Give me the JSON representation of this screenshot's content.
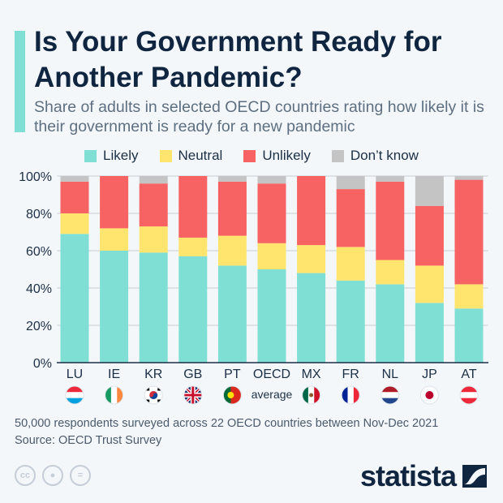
{
  "title": "Is Your Government Ready for Another Pandemic?",
  "subtitle": "Share of adults in selected OECD countries rating how likely it is their government is ready for a new pandemic",
  "footnote": "50,000 respondents surveyed across 22 OECD countries between Nov-Dec 2021",
  "source": "Source: OECD Trust Survey",
  "logo": "statista",
  "license_icons": [
    "cc-icon",
    "attribution-icon",
    "no-derivatives-icon"
  ],
  "chart_data": {
    "type": "bar",
    "stacked": true,
    "categories": [
      "LU",
      "IE",
      "KR",
      "GB",
      "PT",
      "OECD average",
      "MX",
      "FR",
      "NL",
      "JP",
      "AT"
    ],
    "category_labels": [
      [
        "LU"
      ],
      [
        "IE"
      ],
      [
        "KR"
      ],
      [
        "GB"
      ],
      [
        "PT"
      ],
      [
        "OECD",
        "average"
      ],
      [
        "MX"
      ],
      [
        "FR"
      ],
      [
        "NL"
      ],
      [
        "JP"
      ],
      [
        "AT"
      ]
    ],
    "series": [
      {
        "name": "Likely",
        "color": "#7fdfd4",
        "values": [
          69,
          60,
          59,
          57,
          52,
          50,
          48,
          44,
          42,
          32,
          29
        ]
      },
      {
        "name": "Neutral",
        "color": "#ffe56e",
        "values": [
          11,
          12,
          14,
          10,
          16,
          14,
          15,
          18,
          13,
          20,
          13
        ]
      },
      {
        "name": "Unlikely",
        "color": "#f76262",
        "values": [
          17,
          28,
          23,
          33,
          29,
          32,
          37,
          31,
          42,
          32,
          56
        ]
      },
      {
        "name": "Don’t know",
        "color": "#c4c4c4",
        "values": [
          3,
          0,
          4,
          0,
          3,
          4,
          0,
          7,
          3,
          16,
          2
        ]
      }
    ],
    "yticks": [
      "0%",
      "20%",
      "40%",
      "60%",
      "80%",
      "100%"
    ],
    "ylim": [
      0,
      100
    ],
    "grid": true,
    "legend_position": "top"
  }
}
